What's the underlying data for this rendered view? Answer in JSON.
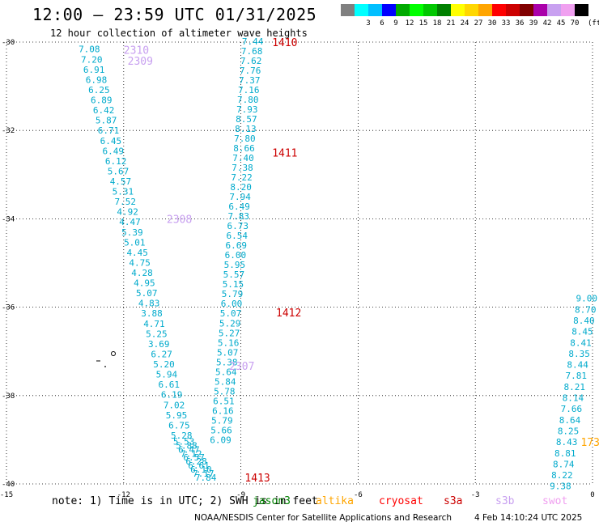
{
  "header": {
    "title": "12:00 – 23:59 UTC 01/31/2025",
    "subtitle": "12 hour collection of altimeter wave heights"
  },
  "color_scale": {
    "unit": "(ft)",
    "swatches": [
      {
        "color": "#808080",
        "label": ""
      },
      {
        "color": "#00ffff",
        "label": "3"
      },
      {
        "color": "#00bfff",
        "label": "6"
      },
      {
        "color": "#0000ff",
        "label": "9"
      },
      {
        "color": "#00aa00",
        "label": "12"
      },
      {
        "color": "#00ff00",
        "label": "15"
      },
      {
        "color": "#00c800",
        "label": "18"
      },
      {
        "color": "#008000",
        "label": "21"
      },
      {
        "color": "#ffff00",
        "label": "24"
      },
      {
        "color": "#ffd700",
        "label": "27"
      },
      {
        "color": "#ffa500",
        "label": "30"
      },
      {
        "color": "#ff0000",
        "label": "33"
      },
      {
        "color": "#cc0000",
        "label": "36"
      },
      {
        "color": "#800000",
        "label": "39"
      },
      {
        "color": "#aa00aa",
        "label": "42"
      },
      {
        "color": "#c8a0f0",
        "label": "45"
      },
      {
        "color": "#f0a0f0",
        "label": "70"
      },
      {
        "color": "#000000",
        "label": ""
      }
    ]
  },
  "chart_data": {
    "type": "scatter",
    "title": "12:00 – 23:59 UTC 01/31/2025",
    "subtitle": "12 hour collection of altimeter wave heights",
    "xlabel": "",
    "ylabel": "",
    "xlim": [
      -15,
      0
    ],
    "ylim": [
      -40,
      -30
    ],
    "x_ticks": [
      -15,
      -12,
      -9,
      -6,
      -3,
      0
    ],
    "y_ticks": [
      -30,
      -32,
      -34,
      -36,
      -38,
      -40
    ],
    "grid": true,
    "series": [
      {
        "name": "track-a",
        "color": "#00aacc",
        "lon": [
          -12.88,
          -12.82,
          -12.76,
          -12.7,
          -12.63,
          -12.57,
          -12.51,
          -12.45,
          -12.39,
          -12.33,
          -12.27,
          -12.2,
          -12.14,
          -12.08,
          -12.02,
          -11.96,
          -11.9,
          -11.84,
          -11.78,
          -11.72,
          -11.65,
          -11.59,
          -11.53,
          -11.47,
          -11.41,
          -11.35,
          -11.28,
          -11.22,
          -11.16,
          -11.1,
          -11.03,
          -10.97,
          -10.9,
          -10.84,
          -10.77,
          -10.71,
          -10.65,
          -10.58,
          -10.52,
          -10.46,
          -10.39,
          -10.33,
          -10.27,
          -10.2,
          -10.14,
          -10.08,
          -10.02,
          -9.96,
          -9.9
        ],
        "lat": [
          -30.16,
          -30.39,
          -30.62,
          -30.85,
          -31.08,
          -31.31,
          -31.54,
          -31.77,
          -32.0,
          -32.23,
          -32.46,
          -32.69,
          -32.92,
          -33.15,
          -33.38,
          -33.61,
          -33.84,
          -34.07,
          -34.3,
          -34.53,
          -34.76,
          -34.99,
          -35.22,
          -35.45,
          -35.68,
          -35.91,
          -36.14,
          -36.37,
          -36.6,
          -36.83,
          -37.06,
          -37.29,
          -37.52,
          -37.75,
          -37.98,
          -38.21,
          -38.44,
          -38.67,
          -38.9,
          -39.04,
          -39.13,
          -39.22,
          -39.31,
          -39.4,
          -39.49,
          -39.58,
          -39.67,
          -39.76,
          -39.85
        ],
        "values": [
          7.08,
          7.2,
          6.91,
          6.98,
          6.25,
          6.89,
          6.42,
          5.87,
          6.71,
          6.45,
          6.49,
          6.12,
          5.67,
          4.57,
          5.31,
          7.52,
          4.92,
          4.47,
          5.39,
          5.01,
          4.45,
          4.75,
          4.28,
          4.95,
          5.07,
          4.83,
          3.88,
          4.71,
          5.25,
          3.69,
          6.27,
          5.2,
          5.94,
          6.61,
          6.19,
          7.02,
          5.95,
          6.75,
          5.28,
          5.53,
          5.88,
          6.47,
          7.12,
          6.57,
          6.28,
          6.61,
          6.1,
          7.17,
          7.84
        ]
      },
      {
        "name": "track-b",
        "color": "#00aacc",
        "lon": [
          -8.7,
          -8.72,
          -8.74,
          -8.76,
          -8.78,
          -8.8,
          -8.82,
          -8.84,
          -8.86,
          -8.88,
          -8.9,
          -8.92,
          -8.94,
          -8.96,
          -8.98,
          -9.0,
          -9.02,
          -9.04,
          -9.06,
          -9.08,
          -9.1,
          -9.12,
          -9.14,
          -9.16,
          -9.18,
          -9.2,
          -9.22,
          -9.24,
          -9.26,
          -9.28,
          -9.3,
          -9.32,
          -9.34,
          -9.36,
          -9.38,
          -9.4,
          -9.42,
          -9.44,
          -9.46,
          -9.48,
          -9.5,
          -9.52
        ],
        "lat": [
          -29.98,
          -30.2,
          -30.42,
          -30.64,
          -30.86,
          -31.08,
          -31.3,
          -31.52,
          -31.74,
          -31.96,
          -32.18,
          -32.4,
          -32.62,
          -32.84,
          -33.06,
          -33.28,
          -33.5,
          -33.72,
          -33.94,
          -34.16,
          -34.38,
          -34.6,
          -34.82,
          -35.04,
          -35.26,
          -35.48,
          -35.7,
          -35.92,
          -36.14,
          -36.36,
          -36.58,
          -36.8,
          -37.02,
          -37.24,
          -37.46,
          -37.68,
          -37.9,
          -38.12,
          -38.34,
          -38.56,
          -38.78,
          -39.0
        ],
        "values": [
          7.44,
          7.68,
          7.62,
          7.76,
          7.37,
          7.16,
          7.8,
          7.93,
          8.57,
          8.13,
          7.8,
          8.66,
          7.4,
          7.38,
          7.22,
          8.2,
          7.94,
          6.49,
          7.83,
          6.73,
          6.54,
          6.69,
          6.0,
          5.95,
          5.57,
          5.15,
          5.79,
          6.0,
          5.07,
          5.29,
          5.27,
          5.16,
          5.07,
          5.38,
          5.64,
          5.84,
          5.78,
          6.51,
          6.16,
          5.79,
          5.66,
          6.09
        ]
      },
      {
        "name": "track-c",
        "color": "#00aacc",
        "lon": [
          -0.15,
          -0.18,
          -0.22,
          -0.26,
          -0.3,
          -0.34,
          -0.38,
          -0.42,
          -0.46,
          -0.5,
          -0.54,
          -0.58,
          -0.62,
          -0.66,
          -0.7,
          -0.74,
          -0.78,
          -0.82
        ],
        "lat": [
          -35.8,
          -36.05,
          -36.3,
          -36.55,
          -36.8,
          -37.05,
          -37.3,
          -37.55,
          -37.8,
          -38.05,
          -38.3,
          -38.55,
          -38.8,
          -39.05,
          -39.3,
          -39.55,
          -39.8,
          -40.05
        ],
        "values": [
          9.0,
          8.7,
          8.4,
          8.45,
          8.41,
          8.35,
          8.44,
          7.81,
          8.21,
          8.14,
          7.66,
          8.64,
          8.25,
          8.43,
          8.81,
          8.74,
          8.22,
          9.38
        ]
      }
    ],
    "annotations": [
      {
        "text": "2310",
        "lon": -12.0,
        "lat": -30.17,
        "color": "#c8a0f0"
      },
      {
        "text": "2309",
        "lon": -11.9,
        "lat": -30.42,
        "color": "#c8a0f0"
      },
      {
        "text": "2308",
        "lon": -10.9,
        "lat": -34.0,
        "color": "#c8a0f0"
      },
      {
        "text": "2307",
        "lon": -9.3,
        "lat": -37.33,
        "color": "#c8a0f0"
      },
      {
        "text": "1410",
        "lon": -8.2,
        "lat": -30.0,
        "color": "#cc0000"
      },
      {
        "text": "1411",
        "lon": -8.2,
        "lat": -32.5,
        "color": "#cc0000"
      },
      {
        "text": "1412",
        "lon": -8.1,
        "lat": -36.12,
        "color": "#cc0000"
      },
      {
        "text": "1413",
        "lon": -8.9,
        "lat": -39.85,
        "color": "#cc0000"
      },
      {
        "text": "173",
        "lon": -0.3,
        "lat": -39.05,
        "color": "#ffa500"
      }
    ]
  },
  "legend": {
    "note": "note: 1) Time is in UTC; 2) SWH is in feet",
    "missions": [
      {
        "name": "jason3",
        "color": "#008000"
      },
      {
        "name": "altika",
        "color": "#ffa500"
      },
      {
        "name": "cryosat",
        "color": "#ff0000"
      },
      {
        "name": "s3a",
        "color": "#cc0000"
      },
      {
        "name": "s3b",
        "color": "#c8a0f0"
      },
      {
        "name": "swot",
        "color": "#f0a0f0"
      }
    ]
  },
  "footer": {
    "credit": "NOAA/NESDIS Center for Satellite Applications and Research",
    "timestamp": "4 Feb 14:10:24 UTC 2025"
  }
}
